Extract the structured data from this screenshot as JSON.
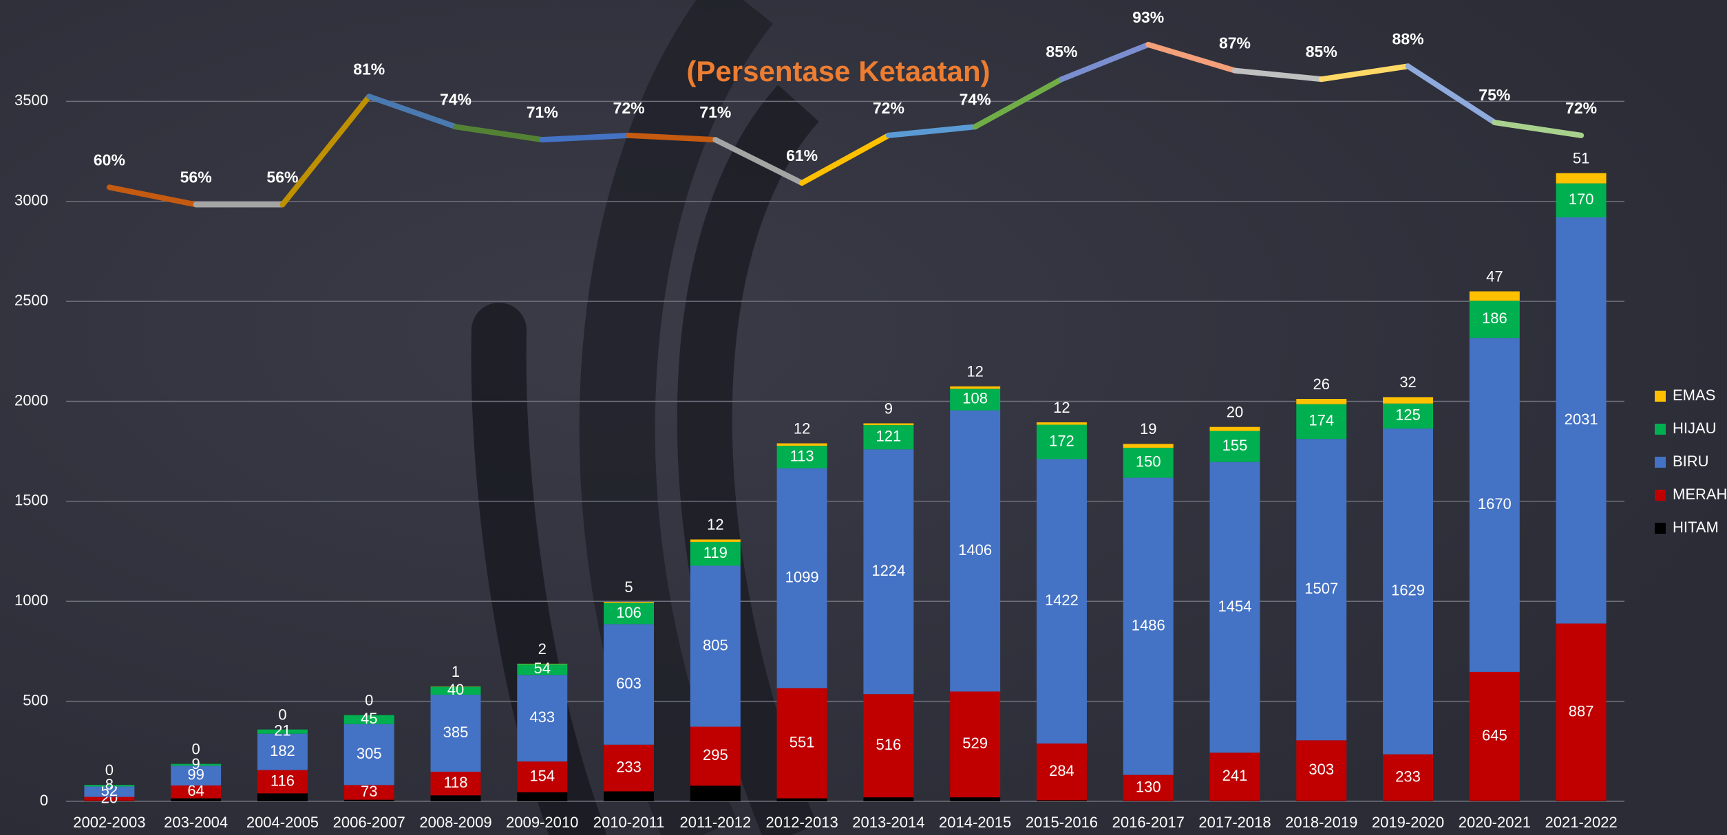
{
  "chart_data": {
    "type": "stacked_bar_line",
    "title": "(Persentase Ketaatan)",
    "categories": [
      "2002-2003",
      "203-2004",
      "2004-2005",
      "2006-2007",
      "2008-2009",
      "2009-2010",
      "2010-2011",
      "2011-2012",
      "2012-2013",
      "2013-2014",
      "2014-2015",
      "2015-2016",
      "2016-2017",
      "2017-2018",
      "2018-2019",
      "2019-2020",
      "2020-2021",
      "2021-2022"
    ],
    "series": [
      {
        "name": "HITAM",
        "color": "#000000",
        "values": [
          2,
          15,
          40,
          8,
          30,
          45,
          50,
          78,
          15,
          20,
          20,
          5,
          2,
          2,
          2,
          2,
          2,
          2
        ]
      },
      {
        "name": "MERAH",
        "color": "#c00000",
        "values": [
          20,
          64,
          116,
          73,
          118,
          154,
          233,
          295,
          551,
          516,
          529,
          284,
          130,
          241,
          303,
          233,
          645,
          887
        ]
      },
      {
        "name": "BIRU",
        "color": "#4472c4",
        "values": [
          52,
          99,
          182,
          305,
          385,
          433,
          603,
          805,
          1099,
          1224,
          1406,
          1422,
          1486,
          1454,
          1507,
          1629,
          1670,
          2031
        ]
      },
      {
        "name": "HIJAU",
        "color": "#00b050",
        "values": [
          8,
          9,
          21,
          45,
          40,
          54,
          106,
          119,
          113,
          121,
          108,
          172,
          150,
          155,
          174,
          125,
          186,
          170
        ]
      },
      {
        "name": "EMAS",
        "color": "#ffc000",
        "values": [
          0,
          0,
          0,
          0,
          1,
          2,
          5,
          12,
          12,
          9,
          12,
          12,
          19,
          20,
          26,
          32,
          47,
          51
        ]
      }
    ],
    "line": {
      "axis": "y2",
      "values": [
        60,
        56,
        56,
        81,
        74,
        71,
        72,
        71,
        61,
        72,
        74,
        85,
        93,
        87,
        85,
        88,
        75,
        72
      ],
      "value_labels": [
        "60%",
        "56%",
        "56%",
        "81%",
        "74%",
        "71%",
        "72%",
        "71%",
        "61%",
        "72%",
        "74%",
        "85%",
        "93%",
        "87%",
        "85%",
        "88%",
        "75%",
        "72%"
      ],
      "segment_colors": [
        "#c55a11",
        "#a5a5a5",
        "#bf9000",
        "#4a7ab0",
        "#548235",
        "#4472c4",
        "#c55a11",
        "#a5a5a5",
        "#ffc000",
        "#5b9bd5",
        "#70ad47",
        "#7b8fd0",
        "#f4a07a",
        "#c0c0c0",
        "#ffd966",
        "#8faadc",
        "#a9d18e"
      ]
    },
    "labeled_series": [
      "MERAH",
      "BIRU",
      "HIJAU",
      "EMAS"
    ],
    "ylim": [
      0,
      4000
    ],
    "yticks": [
      0,
      500,
      1000,
      1500,
      2000,
      2500,
      3000,
      3500
    ],
    "y2lim": [
      -82,
      103
    ],
    "grid": true,
    "legend": "right"
  }
}
